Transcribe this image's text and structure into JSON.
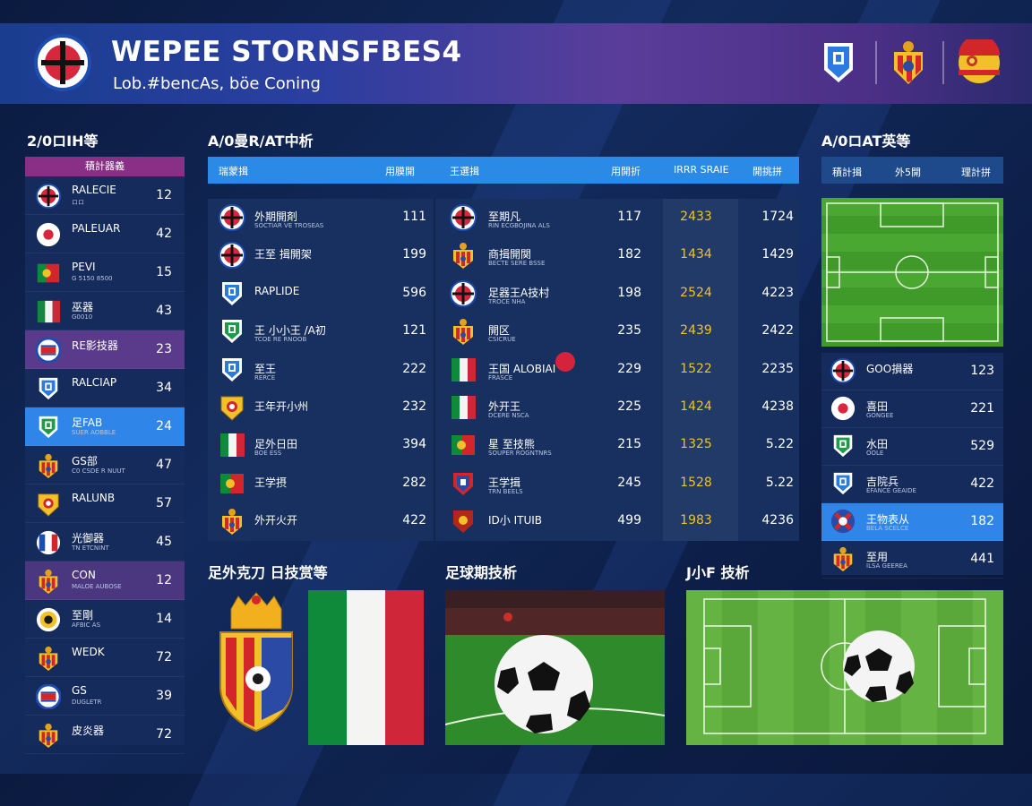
{
  "header": {
    "title": "WEPEE STORNSFBES4",
    "subtitle": "Lob.#bencAs, böe Coning"
  },
  "sections": {
    "left_title": "2/0ロIH等",
    "center_title": "A/0曼R/AT中析",
    "right_title": "A/0ロAT英等",
    "bottom_left_title": "足外克刀 日技赏等",
    "bottom_mid_title": "足球期技析",
    "bottom_right_title": "J小F 技析"
  },
  "left_panel": {
    "header": "積計器義",
    "rows": [
      {
        "name": "RALECIE",
        "sub": "ロロ",
        "value": "12",
        "icon": "england-crest-icon",
        "highlight": ""
      },
      {
        "name": "PALEUAR",
        "sub": "",
        "value": "42",
        "icon": "japan-flag-icon",
        "highlight": ""
      },
      {
        "name": "PEVI",
        "sub": "G 5150 8500",
        "value": "15",
        "icon": "portugal-flag-icon",
        "highlight": ""
      },
      {
        "name": "巫器",
        "sub": "G0010",
        "value": "43",
        "icon": "italy-flag-icon",
        "highlight": ""
      },
      {
        "name": "RE影技器",
        "sub": "",
        "value": "23",
        "icon": "costa-rica-crest-icon",
        "highlight": "purple"
      },
      {
        "name": "RALCIAP",
        "sub": "",
        "value": "34",
        "icon": "blue-shield-icon",
        "highlight": ""
      },
      {
        "name": "足FAB",
        "sub": "SUER AOBBLE",
        "value": "24",
        "icon": "green-shield-icon",
        "highlight": "blue"
      },
      {
        "name": "GS部",
        "sub": "C0 CSDE R NUUT",
        "value": "47",
        "icon": "spain-crest-icon",
        "highlight": ""
      },
      {
        "name": "RALUNB",
        "sub": "",
        "value": "57",
        "icon": "yellow-shield-icon",
        "highlight": ""
      },
      {
        "name": "光御器",
        "sub": "TN ETCNINT",
        "value": "45",
        "icon": "france-crest-icon",
        "highlight": ""
      },
      {
        "name": "CON",
        "sub": "MALOE AUBOSE",
        "value": "12",
        "icon": "spain-crest-icon",
        "highlight": "purple2"
      },
      {
        "name": "至剛",
        "sub": "AFBIC AS",
        "value": "14",
        "icon": "gold-crest-icon",
        "highlight": ""
      },
      {
        "name": "WEDK",
        "sub": "",
        "value": "72",
        "icon": "spain-crest-icon",
        "highlight": ""
      },
      {
        "name": "GS",
        "sub": "DUGLETR",
        "value": "39",
        "icon": "costa-rica-crest-icon",
        "highlight": ""
      },
      {
        "name": "皮炎器",
        "sub": "",
        "value": "72",
        "icon": "spain-crest-icon",
        "highlight": ""
      }
    ]
  },
  "table": {
    "headers": [
      "瑞蒙揖",
      "用膜開",
      "王選揖",
      "用開折",
      "IRRR SRAIE",
      "開挑拼"
    ],
    "rows": [
      {
        "lname": "外期開剤",
        "lsub": "SOCTIAR VE TROSEAS",
        "v1": "111",
        "licon": "england-crest-icon",
        "rname": "至期凡",
        "rsub": "RIN ECGBOJINA ALS",
        "v2": "117",
        "v3": "2433",
        "v4": "1724",
        "ricon": "england-crest-icon"
      },
      {
        "name_note": "",
        "lname": "王至 揖開架",
        "lsub": "",
        "v1": "199",
        "licon": "england-crest-icon",
        "rname": "商揖開関",
        "rsub": "BECTE SERE BSSE",
        "v2": "182",
        "v3": "1434",
        "v4": "1429",
        "ricon": "spain-crest-icon"
      },
      {
        "lname": "RAPLIDE",
        "lsub": "",
        "v1": "596",
        "licon": "blue-shield-icon",
        "rname": "足器王A技村",
        "rsub": "TROCE NHA",
        "v2": "198",
        "v3": "2524",
        "v4": "4223",
        "ricon": "england-crest-icon"
      },
      {
        "lname": "王 小小王 /A初",
        "lsub": "TCOE RE RNOOB",
        "v1": "121",
        "licon": "green-shield-icon",
        "rname": "開区",
        "rsub": "CSICRUE",
        "v2": "235",
        "v3": "2439",
        "v4": "2422",
        "ricon": "spain-crest-icon"
      },
      {
        "lname": "至王",
        "lsub": "RERCE",
        "v1": "222",
        "licon": "blue-shield-icon",
        "rname": "王国 ALOBIAI",
        "rsub": "FRASCE",
        "v2": "229",
        "v3": "1522",
        "v4": "2235",
        "ricon": "italy-flag-icon"
      },
      {
        "lname": "王年开小州",
        "lsub": "",
        "v1": "232",
        "licon": "yellow-shield-icon",
        "rname": "外开王",
        "rsub": "DCERE NSCA",
        "v2": "225",
        "v3": "1424",
        "v4": "4238",
        "ricon": "italy-flag-icon"
      },
      {
        "lname": "足外日田",
        "lsub": "BOE ESS",
        "v1": "394",
        "licon": "italy-flag-icon",
        "rname": "星 至技熊",
        "rsub": "SOUPER ROGNTNRS",
        "v2": "215",
        "v3": "1325",
        "v4": "5.22",
        "ricon": "portugal-flag-icon"
      },
      {
        "lname": "王学摂",
        "lsub": "",
        "v1": "282",
        "licon": "portugal-flag-icon",
        "rname": "王学揖",
        "rsub": "TRN BEELS",
        "v2": "245",
        "v3": "1528",
        "v4": "5.22",
        "ricon": "blue-red-crest-icon"
      },
      {
        "lname": "外开火开",
        "lsub": "",
        "v1": "422",
        "licon": "spain-crest-icon",
        "rname": "ID小 ITUIB",
        "rsub": "",
        "v2": "499",
        "v3": "1983",
        "v4": "4236",
        "ricon": "red-shield-icon"
      }
    ]
  },
  "right_panel": {
    "headers": [
      "積計揖",
      "外5開",
      "理計拼"
    ],
    "rows": [
      {
        "name": "GOO損器",
        "sub": "",
        "value": "123",
        "icon": "england-crest-icon",
        "highlight": false
      },
      {
        "name": "喜田",
        "sub": "GONGEE",
        "value": "221",
        "icon": "japan-flag-icon",
        "highlight": false
      },
      {
        "name": "水田",
        "sub": "OOLE",
        "value": "529",
        "icon": "green-shield-icon",
        "highlight": false
      },
      {
        "name": "吉院兵",
        "sub": "EFANCE GEAIDE",
        "value": "422",
        "icon": "blue-shield-icon",
        "highlight": false
      },
      {
        "name": "王物表从",
        "sub": "BELA SCELCE",
        "value": "182",
        "icon": "red-cross-crest-icon",
        "highlight": true
      },
      {
        "name": "至用",
        "sub": "ILSA GEEREA",
        "value": "441",
        "icon": "spain-crest-icon",
        "highlight": false
      }
    ]
  },
  "colors": {
    "accent_blue": "#2a8ae6",
    "accent_purple": "#8a2f86",
    "value_yellow": "#f4c21f",
    "pitch_green": "#3f9a2a"
  }
}
